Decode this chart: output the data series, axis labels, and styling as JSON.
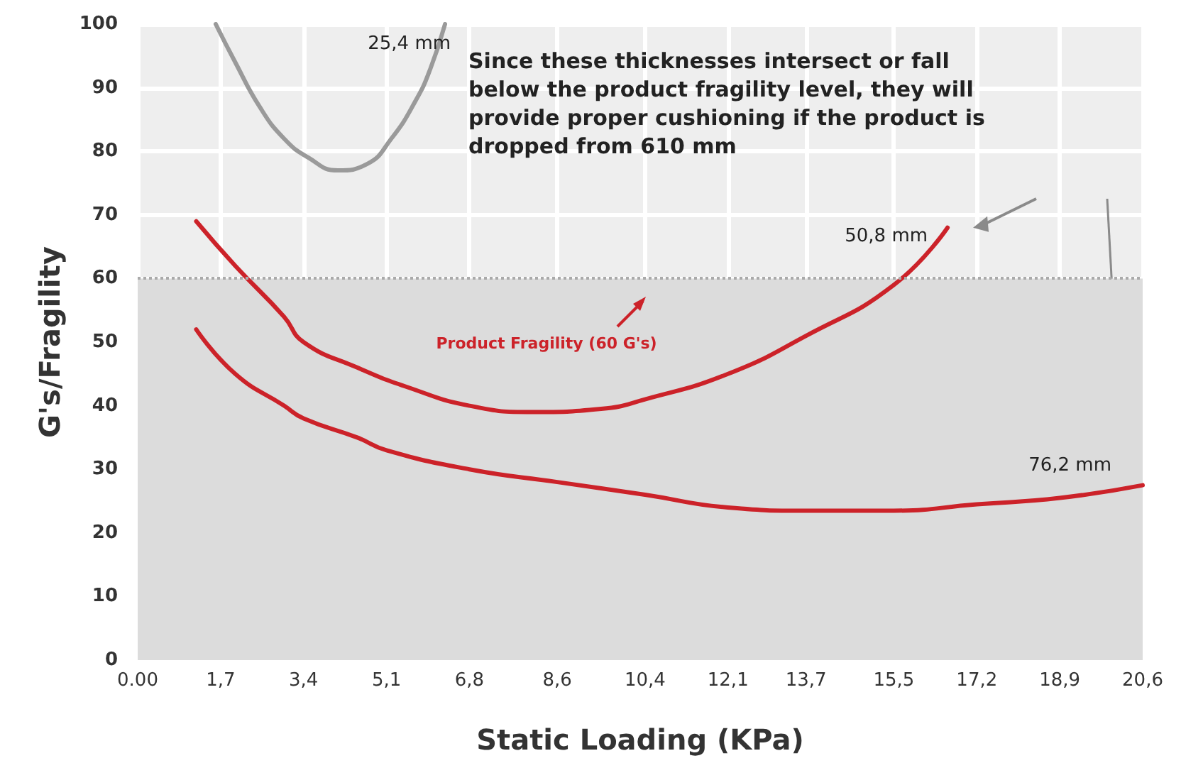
{
  "chart_data": {
    "type": "line",
    "xlabel": "Static Loading (KPa)",
    "ylabel": "G's/Fragility",
    "xlim": [
      0,
      20.6
    ],
    "xticks": [
      {
        "value": 0,
        "label": "0.00"
      },
      {
        "value": 1.7,
        "label": "1,7"
      },
      {
        "value": 3.4,
        "label": "3,4"
      },
      {
        "value": 5.1,
        "label": "5,1"
      },
      {
        "value": 6.8,
        "label": "6,8"
      },
      {
        "value": 8.6,
        "label": "8,6"
      },
      {
        "value": 10.4,
        "label": "10,4"
      },
      {
        "value": 12.1,
        "label": "12,1"
      },
      {
        "value": 13.7,
        "label": "13,7"
      },
      {
        "value": 15.5,
        "label": "15,5"
      },
      {
        "value": 17.2,
        "label": "17,2"
      },
      {
        "value": 18.9,
        "label": "18,9"
      },
      {
        "value": 20.6,
        "label": "20,6"
      }
    ],
    "ylim": [
      0,
      100
    ],
    "yticks": [
      0,
      10,
      20,
      30,
      40,
      50,
      60,
      70,
      80,
      90,
      100
    ],
    "grid": true,
    "legend": false,
    "marker": "none",
    "line_style": "solid",
    "series": [
      {
        "name": "25,4 mm",
        "color": "#9a9a9a",
        "x": [
          1.6,
          2.0,
          2.5,
          3.0,
          3.5,
          4.1,
          4.7,
          5.2,
          5.7,
          6.0,
          6.3
        ],
        "values": [
          100,
          94,
          87,
          82,
          79,
          77,
          78,
          82,
          88,
          93,
          100
        ]
      },
      {
        "name": "50,8 mm",
        "color": "#cc2229",
        "x": [
          1.2,
          2.0,
          3.0,
          3.4,
          4.5,
          5.5,
          6.8,
          8.1,
          9.5,
          10.4,
          12.1,
          13.7,
          15.5,
          16.6
        ],
        "values": [
          69,
          62,
          54,
          50,
          46,
          43,
          40,
          39,
          39.5,
          41,
          45,
          51,
          59,
          68
        ]
      },
      {
        "name": "76,2 mm",
        "color": "#cc2229",
        "x": [
          1.2,
          2.0,
          3.0,
          3.4,
          4.5,
          5.1,
          6.8,
          8.6,
          10.4,
          12.1,
          13.7,
          15.5,
          17.2,
          18.9,
          20.6
        ],
        "values": [
          52,
          45,
          40,
          38,
          35,
          33,
          30,
          28,
          26,
          24,
          23.5,
          23.5,
          24.5,
          25.5,
          27.5
        ]
      }
    ],
    "ref_lines": [
      {
        "axis": "y",
        "value": 60,
        "color": "#aaaaaa",
        "line_style": "dotted"
      }
    ],
    "bands": [
      {
        "axis": "y",
        "from": 0,
        "to": 60,
        "color": "#dcdcdc"
      }
    ],
    "annotations": [
      "Product Fragility (60 G's)",
      "Since these thicknesses intersect or fall below the product fragility level, they will provide proper cushioning if the product is dropped from 610 mm"
    ]
  }
}
